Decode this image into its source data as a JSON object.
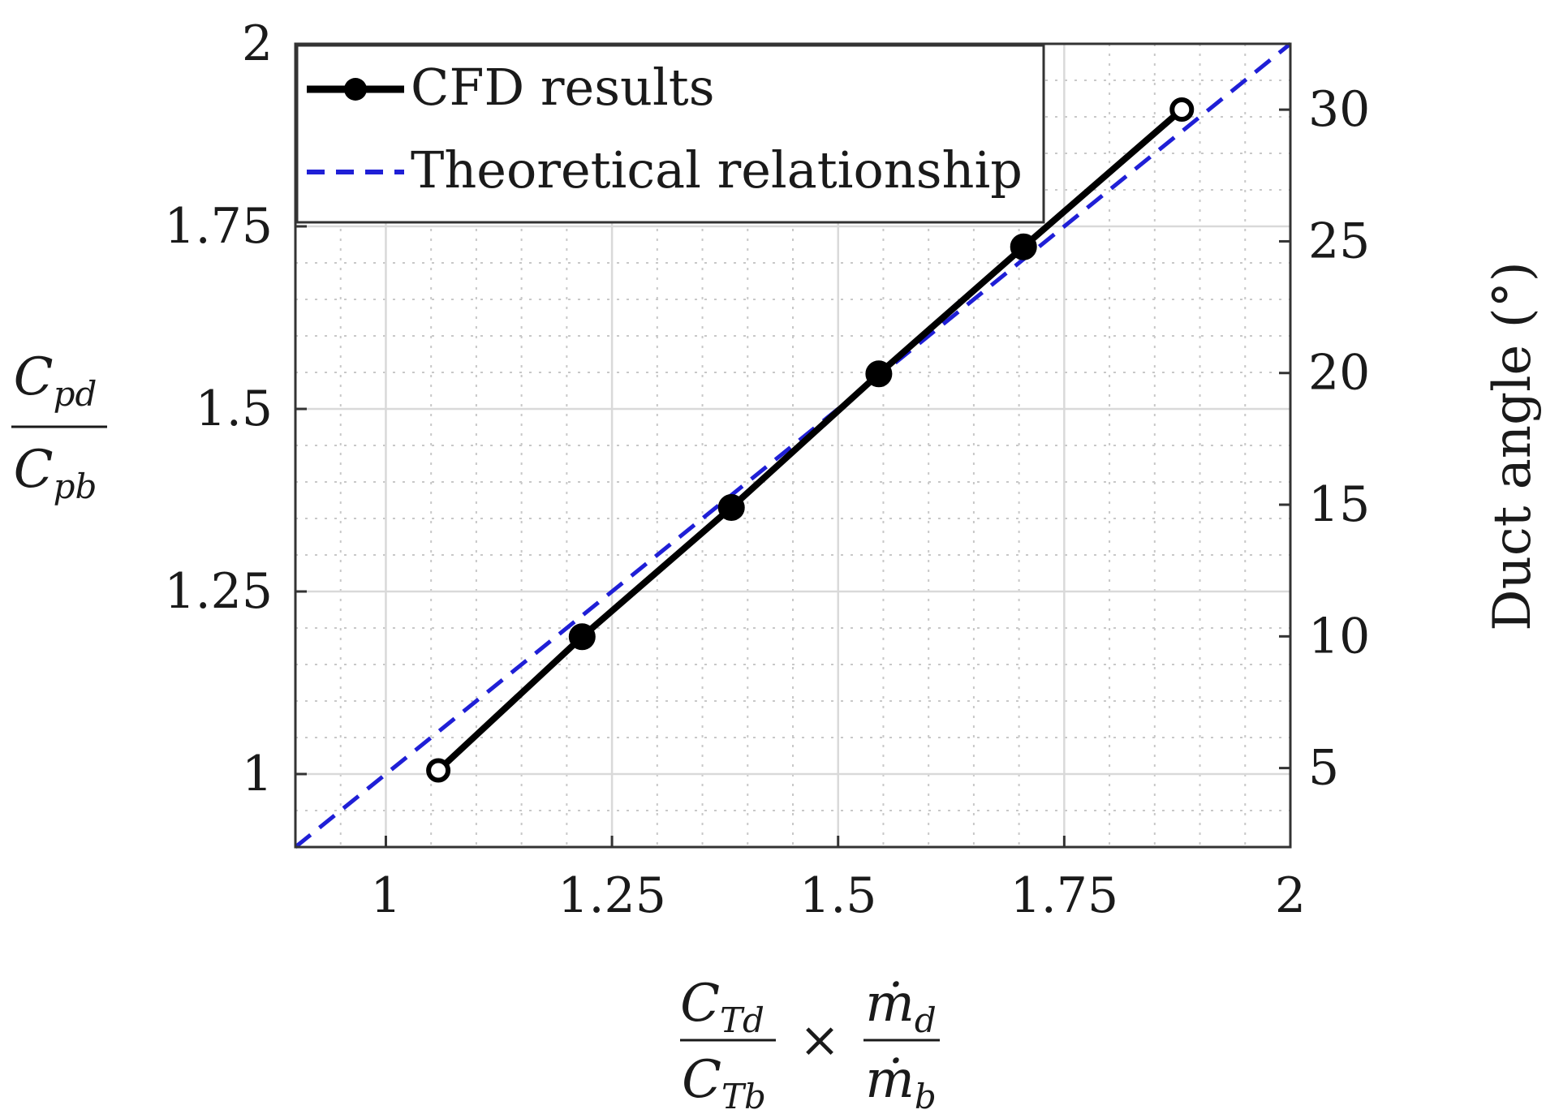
{
  "chart_data": {
    "type": "line",
    "xlim": [
      0.9,
      2.0
    ],
    "ylim": [
      0.9,
      2.0
    ],
    "y2lim": [
      2.0,
      32.5
    ],
    "x_ticks": [
      "1",
      "1.25",
      "1.5",
      "1.75",
      "2"
    ],
    "x_tick_values": [
      1,
      1.25,
      1.5,
      1.75,
      2
    ],
    "y_ticks": [
      "1",
      "1.25",
      "1.5",
      "1.75",
      "2"
    ],
    "y_tick_values": [
      1,
      1.25,
      1.5,
      1.75,
      2
    ],
    "y2_ticks": [
      "5",
      "10",
      "15",
      "20",
      "25",
      "30"
    ],
    "y2_tick_values": [
      5,
      10,
      15,
      20,
      25,
      30
    ],
    "xlabel": {
      "num1": "C",
      "num1_sub": "Td",
      "den1": "C",
      "den1_sub": "Tb",
      "times": "×",
      "num2": "ṁ",
      "num2_sub": "d",
      "den2": "ṁ",
      "den2_sub": "b"
    },
    "ylabel": {
      "num": "C",
      "num_sub": "pd",
      "den": "C",
      "den_sub": "pb"
    },
    "y2label": "Duct angle (°)",
    "grid": true,
    "minor_grid": true,
    "legend_position": "top-left",
    "series": [
      {
        "name": "CFD results",
        "color": "#000000",
        "style": "solid",
        "marker": "circle",
        "x": [
          1.058,
          1.217,
          1.382,
          1.545,
          1.705,
          1.88
        ],
        "y": [
          1.005,
          1.188,
          1.365,
          1.548,
          1.722,
          1.91
        ]
      },
      {
        "name": "Theoretical relationship",
        "color": "#1f1fd6",
        "style": "dashed",
        "marker": "none",
        "x": [
          0.9,
          2.0
        ],
        "y": [
          0.9,
          2.0
        ]
      }
    ]
  }
}
